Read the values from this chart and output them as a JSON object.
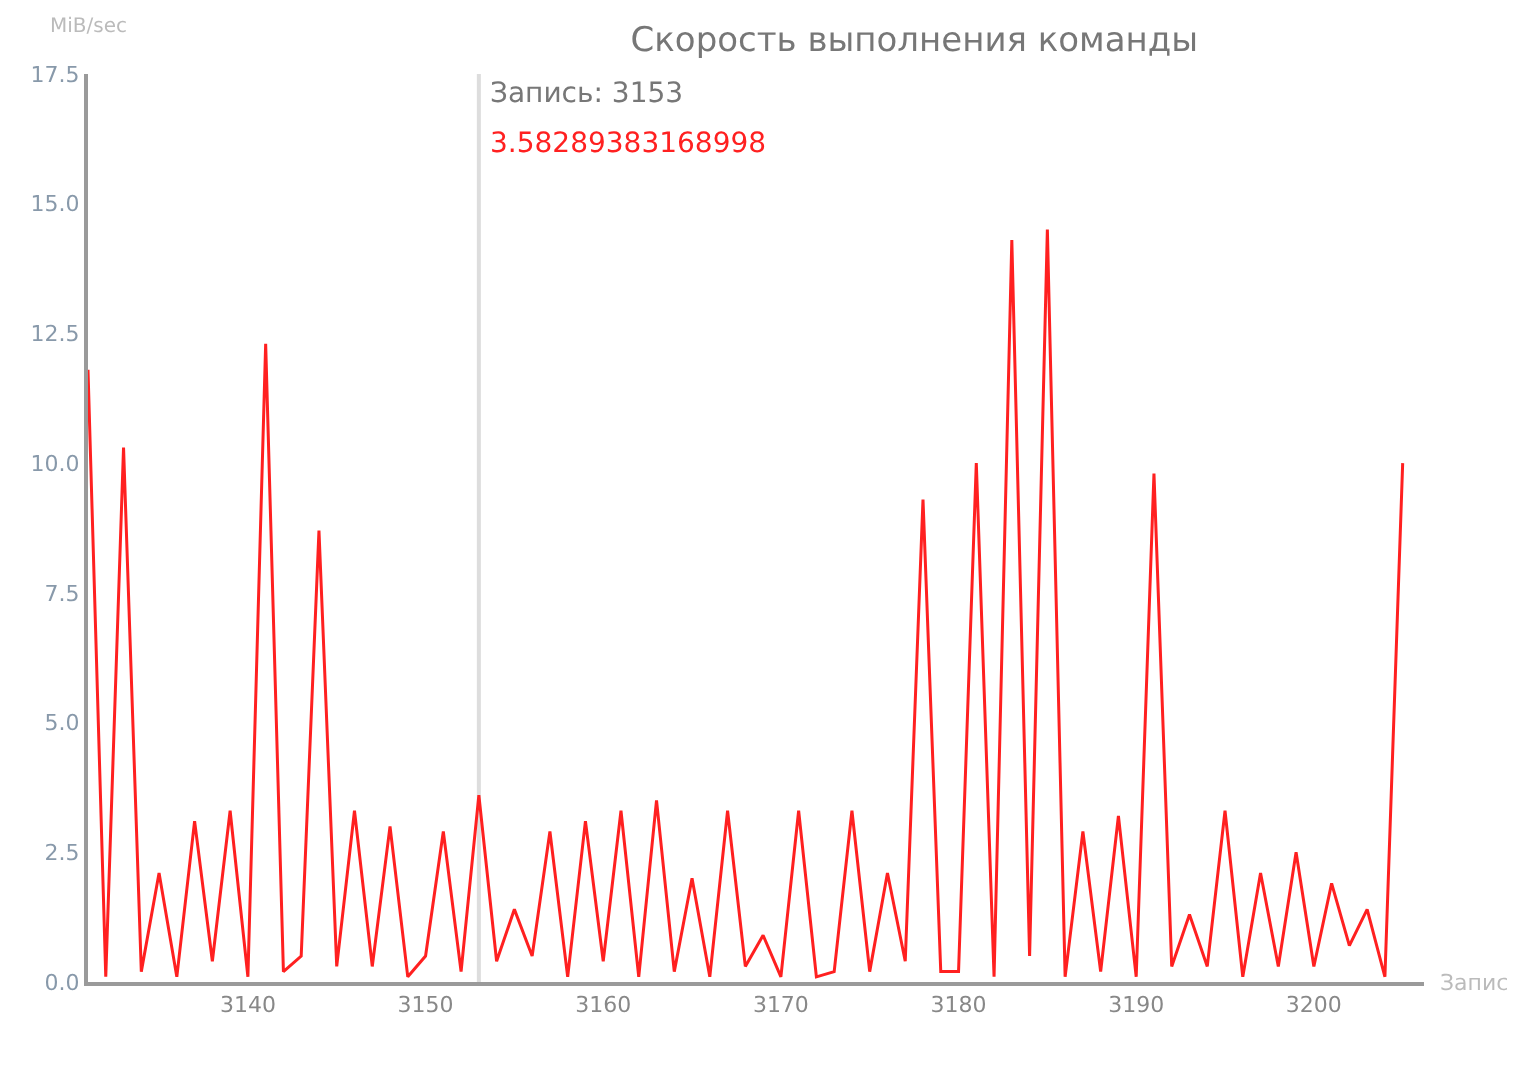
{
  "chart_data": {
    "type": "line",
    "title": "Скорость выполнения команды",
    "xlabel": "Запис",
    "ylabel": "MiB/sec",
    "x": [
      3131,
      3132,
      3133,
      3134,
      3135,
      3136,
      3137,
      3138,
      3139,
      3140,
      3141,
      3142,
      3143,
      3144,
      3145,
      3146,
      3147,
      3148,
      3149,
      3150,
      3151,
      3152,
      3153,
      3154,
      3155,
      3156,
      3157,
      3158,
      3159,
      3160,
      3161,
      3162,
      3163,
      3164,
      3165,
      3166,
      3167,
      3168,
      3169,
      3170,
      3171,
      3172,
      3173,
      3174,
      3175,
      3176,
      3177,
      3178,
      3179,
      3180,
      3181,
      3182,
      3183,
      3184,
      3185,
      3186,
      3187,
      3188,
      3189,
      3190,
      3191,
      3192,
      3193,
      3194,
      3195,
      3196,
      3197,
      3198,
      3199,
      3200,
      3201,
      3202,
      3203,
      3204,
      3205
    ],
    "series": [
      {
        "color": "#ff2020",
        "values": [
          11.8,
          0.1,
          10.3,
          0.2,
          2.1,
          0.1,
          3.1,
          0.4,
          3.3,
          0.1,
          12.3,
          0.2,
          0.5,
          8.7,
          0.3,
          3.3,
          0.3,
          3.0,
          0.1,
          0.5,
          2.9,
          0.2,
          3.6,
          0.4,
          1.4,
          0.5,
          2.9,
          0.1,
          3.1,
          0.4,
          3.3,
          0.1,
          3.5,
          0.2,
          2.0,
          0.1,
          3.3,
          0.3,
          0.9,
          0.1,
          3.3,
          0.1,
          0.2,
          3.3,
          0.2,
          2.1,
          0.4,
          9.3,
          0.2,
          0.2,
          10.0,
          0.1,
          14.3,
          0.5,
          14.5,
          0.1,
          2.9,
          0.2,
          3.2,
          0.1,
          9.8,
          0.3,
          1.3,
          0.3,
          3.3,
          0.1,
          2.1,
          0.3,
          2.5,
          0.3,
          1.9,
          0.7,
          1.4,
          0.1,
          10.0
        ]
      }
    ],
    "xlim": [
      3131,
      3206.2
    ],
    "xticks": [
      3140,
      3150,
      3160,
      3170,
      3180,
      3190,
      3200
    ],
    "ylim": [
      0,
      17.5
    ],
    "yticks": [
      {
        "value": 0,
        "label": "0.0"
      },
      {
        "value": 2.5,
        "label": "2.5"
      },
      {
        "value": 5,
        "label": "5.0"
      },
      {
        "value": 7.5,
        "label": "7.5"
      },
      {
        "value": 10,
        "label": "10.0"
      },
      {
        "value": 12.5,
        "label": "12.5"
      },
      {
        "value": 15,
        "label": "15.0"
      },
      {
        "value": 17.5,
        "label": "17.5"
      }
    ],
    "ref_lines": [
      {
        "axis": "x",
        "value": 3153,
        "label": "Запись: 3153",
        "color": "#dddddd"
      }
    ],
    "annotations": [
      "3.58289383168998"
    ],
    "grid": false,
    "legend": false,
    "marker": "none",
    "line_style": "solid"
  }
}
